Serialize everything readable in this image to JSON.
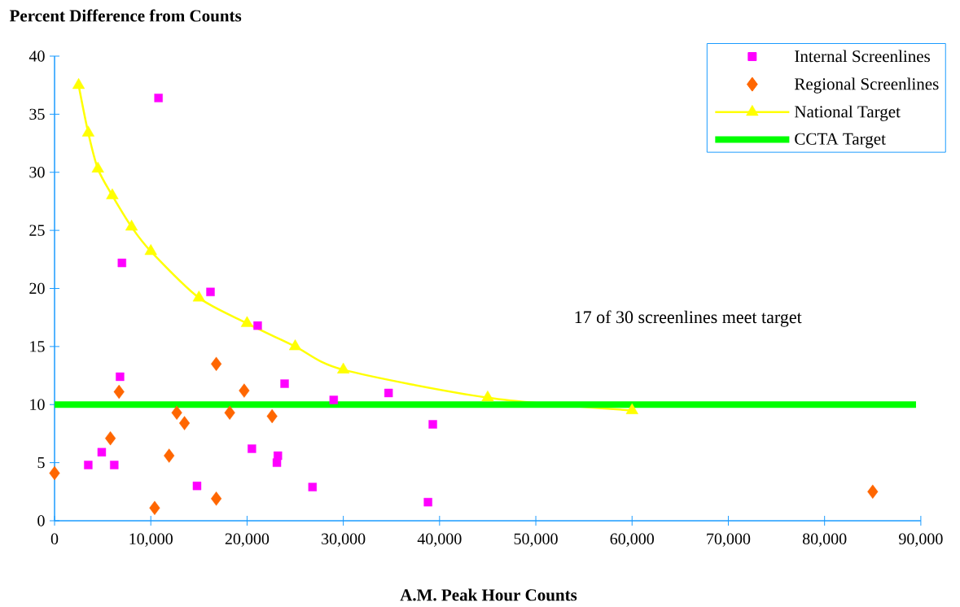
{
  "chart_data": {
    "type": "scatter",
    "ylabel": "Percent Difference from Counts",
    "xlabel": "A.M. Peak Hour Counts",
    "annotations": [
      "17 of 30 screenlines meet target"
    ],
    "xlim": [
      0,
      90000
    ],
    "ylim": [
      0,
      40
    ],
    "xticks": [
      0,
      {
        "value": 10000,
        "label": "10,000"
      },
      {
        "value": 20000,
        "label": "20,000"
      },
      {
        "value": 30000,
        "label": "30,000"
      },
      {
        "value": 40000,
        "label": "40,000"
      },
      {
        "value": 50000,
        "label": "50,000"
      },
      {
        "value": 60000,
        "label": "60,000"
      },
      {
        "value": 70000,
        "label": "70,000"
      },
      {
        "value": 80000,
        "label": "80,000"
      },
      {
        "value": 90000,
        "label": "90,000"
      }
    ],
    "yticks": [
      0,
      5,
      10,
      15,
      20,
      25,
      30,
      35,
      40
    ],
    "grid": false,
    "legend": "top right",
    "series": [
      {
        "name": "Internal Screenlines",
        "marker": "square",
        "color": "#ff00ff",
        "x": [
          3500,
          4900,
          6200,
          6800,
          7000,
          10800,
          14800,
          16200,
          20500,
          21100,
          23200,
          23100,
          23900,
          26800,
          29000,
          34700,
          38800,
          39300
        ],
        "values": [
          4.8,
          5.9,
          4.8,
          12.4,
          22.2,
          36.4,
          3.0,
          19.7,
          6.2,
          16.8,
          5.6,
          5.0,
          11.8,
          2.9,
          10.4,
          11.0,
          1.6,
          8.3
        ]
      },
      {
        "name": "Regional Screenlines",
        "marker": "diamond",
        "color": "#ff6600",
        "x": [
          0,
          5800,
          6700,
          10400,
          11900,
          12700,
          13500,
          16800,
          16800,
          18200,
          19700,
          22600,
          85000
        ],
        "values": [
          4.1,
          7.1,
          11.1,
          1.1,
          5.6,
          9.3,
          8.4,
          1.9,
          13.5,
          9.3,
          11.2,
          9.0,
          2.5
        ]
      },
      {
        "name": "National Target",
        "type": "line",
        "marker": "triangle",
        "color": "#ffff00",
        "x": [
          2500,
          3500,
          4500,
          6000,
          8000,
          10000,
          15000,
          20000,
          25000,
          30000,
          45000,
          60000
        ],
        "values": [
          37.5,
          33.4,
          30.3,
          28.0,
          25.3,
          23.2,
          19.2,
          17.0,
          15.0,
          13.0,
          10.6,
          9.5
        ]
      },
      {
        "name": "CCTA Target",
        "type": "line",
        "marker": "none",
        "color": "#00ff00",
        "x": [
          0,
          89500
        ],
        "values": [
          10,
          10
        ]
      }
    ]
  }
}
